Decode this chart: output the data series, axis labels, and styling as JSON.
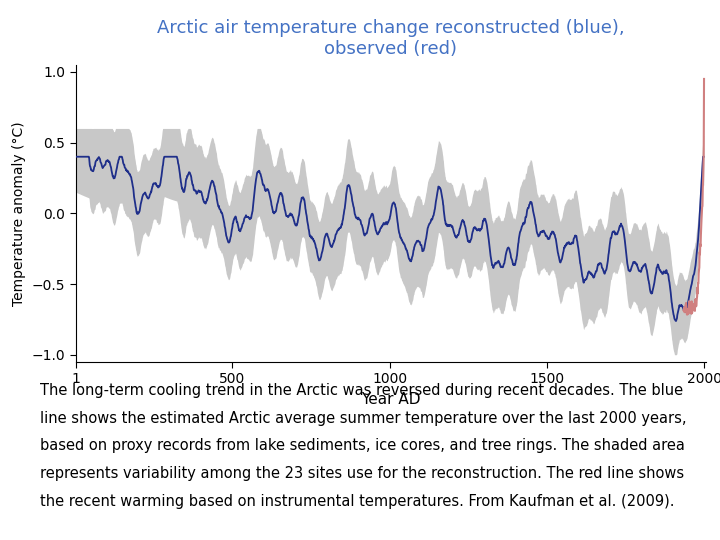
{
  "title": "Arctic air temperature change reconstructed (blue),\nobserved (red)",
  "title_color": "#4472C4",
  "xlabel": "Year AD",
  "ylabel": "Temperature anomaly (°C)",
  "xlim": [
    1,
    2005
  ],
  "ylim": [
    -1.05,
    1.05
  ],
  "xticks": [
    1,
    500,
    1000,
    1500,
    2000
  ],
  "yticks": [
    -1.0,
    -0.5,
    0.0,
    0.5,
    1.0
  ],
  "line_color": "#1F2F8A",
  "shade_color": "#C8C8C8",
  "red_color": "#D08080",
  "background_color": "#ffffff",
  "text_body": "The long-term cooling trend in the Arctic was reversed during recent decades. The blue line shows the estimated Arctic average summer temperature over the last 2000 years, based on proxy records from lake sediments, ice cores, and tree rings. The shaded area represents variability among the 23 sites use for the reconstruction. The red line shows the recent warming based on instrumental temperatures. From Kaufman et al. (2009).",
  "text_fontsize": 10.5,
  "title_fontsize": 13
}
